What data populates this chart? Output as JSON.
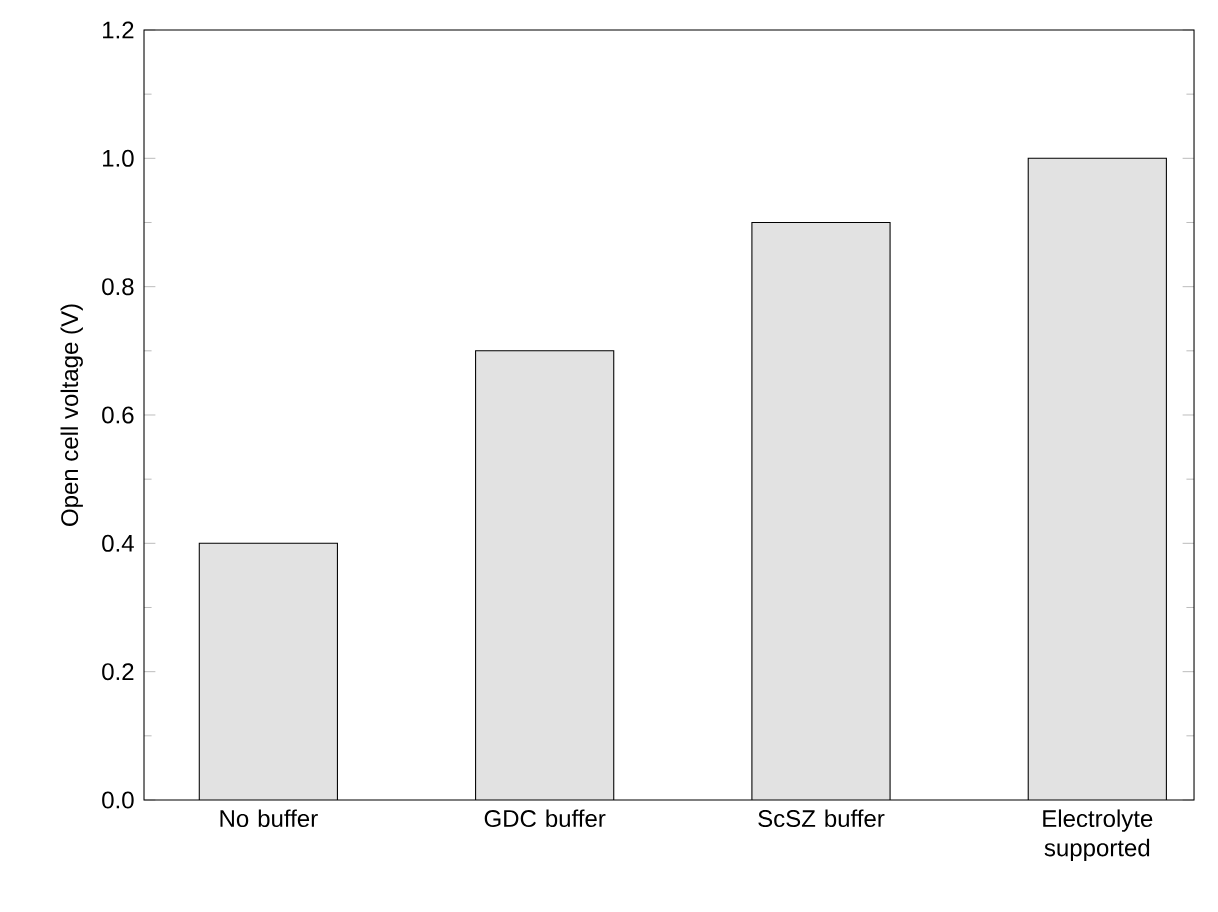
{
  "chart_data": {
    "type": "bar",
    "ylabel": "Open cell voltage (V)",
    "categories": [
      "No buffer",
      "GDC buffer",
      "ScSZ buffer",
      "Electrolyte supported"
    ],
    "values": [
      0.4,
      0.7,
      0.9,
      1.0
    ],
    "color": "#e2e2e2",
    "ylim": [
      0,
      1.2
    ],
    "yticks": [
      {
        "value": 0,
        "label": "0.0"
      },
      {
        "value": 0.2,
        "label": "0.2"
      },
      {
        "value": 0.4,
        "label": "0.4"
      },
      {
        "value": 0.6,
        "label": "0.6"
      },
      {
        "value": 0.8,
        "label": "0.8"
      },
      {
        "value": 1.0,
        "label": "1.0"
      },
      {
        "value": 1.2,
        "label": "1.2"
      }
    ],
    "grid": false
  }
}
